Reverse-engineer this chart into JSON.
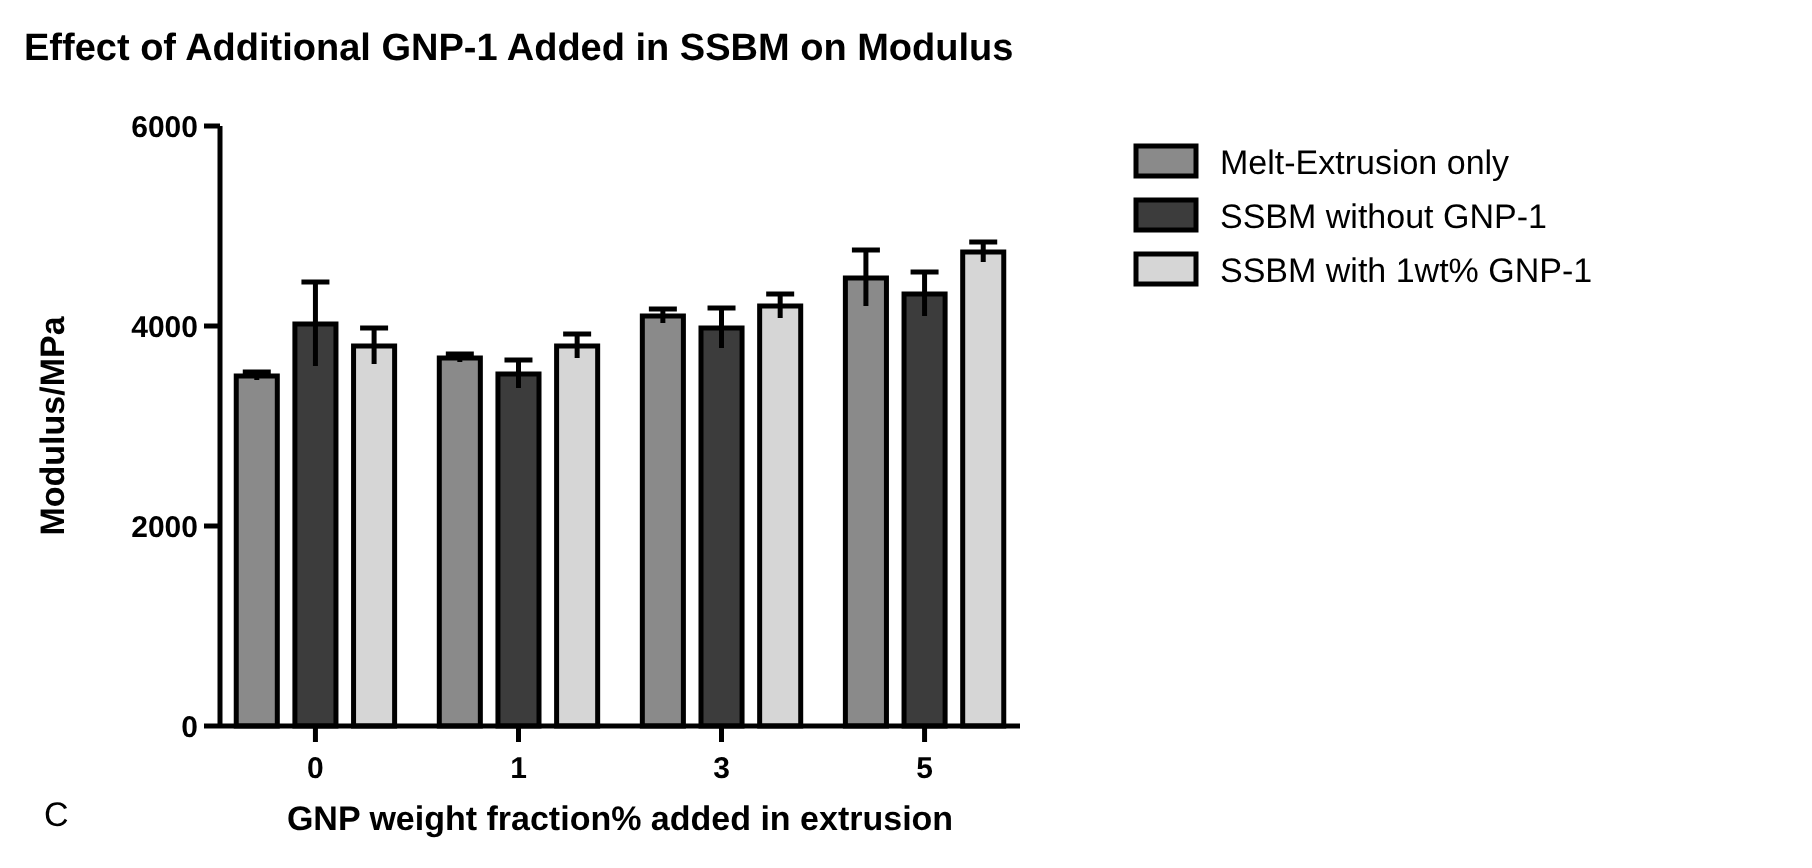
{
  "chart_data": {
    "type": "bar",
    "title": "Effect of Additional GNP-1 Added in SSBM on Modulus",
    "xlabel": "GNP weight fraction% added in extrusion",
    "ylabel": "Modulus/MPa",
    "categories": [
      "0",
      "1",
      "3",
      "5"
    ],
    "series": [
      {
        "name": "Melt-Extrusion only",
        "color": "#8a8a8a",
        "values": [
          3500,
          3680,
          4100,
          4480
        ],
        "errors": [
          40,
          40,
          70,
          280
        ]
      },
      {
        "name": "SSBM without GNP-1",
        "color": "#3c3c3c",
        "values": [
          4020,
          3520,
          3980,
          4320
        ],
        "errors": [
          420,
          140,
          200,
          220
        ]
      },
      {
        "name": "SSBM with 1wt% GNP-1",
        "color": "#d6d6d6",
        "values": [
          3800,
          3800,
          4200,
          4740
        ],
        "errors": [
          180,
          120,
          120,
          100
        ]
      }
    ],
    "ylim": [
      0,
      6000
    ],
    "yticks": [
      0,
      2000,
      4000,
      6000
    ],
    "grid": false,
    "legend": "right",
    "annotations": [
      "C"
    ]
  }
}
